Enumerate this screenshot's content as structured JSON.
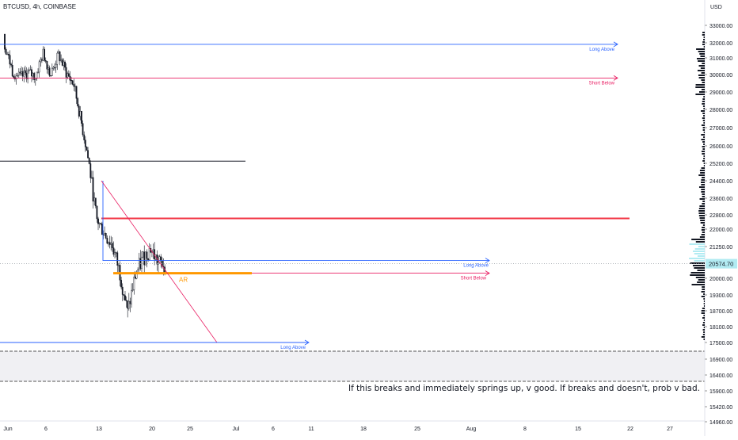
{
  "header": {
    "symbol": "BTCUSD, 4h, COINBASE"
  },
  "price_scale": {
    "currency": "USD",
    "ticks": [
      "33000.00",
      "32000.00",
      "31000.00",
      "30000.00",
      "29000.00",
      "28000.00",
      "27000.00",
      "26000.00",
      "25200.00",
      "24400.00",
      "23600.00",
      "22800.00",
      "22000.00",
      "21250.00",
      "20000.00",
      "19300.00",
      "18700.00",
      "18100.00",
      "17500.00",
      "16900.00",
      "16400.00",
      "15900.00",
      "15420.00",
      "14960.00"
    ],
    "current_price": "20574.70",
    "current_price_color": "#b2ebf2"
  },
  "time_axis": {
    "ticks": [
      "Jun",
      "6",
      "13",
      "20",
      "25",
      "Jul",
      "6",
      "11",
      "18",
      "25",
      "Aug",
      "8",
      "15",
      "22",
      "27"
    ]
  },
  "annotations": {
    "long_above": "Long Above",
    "short_below": "Short Below",
    "ar": "AR",
    "note": "If this breaks and immediately springs up, v good.  If breaks and doesn't, prob v bad."
  },
  "colors": {
    "up": "#ffffff",
    "down": "#131722",
    "long_line": "#2962ff",
    "short_line": "#e91e63",
    "resistance": "#f23645",
    "support_orange": "#ff9800",
    "volume_profile": "#131722"
  },
  "chart_data": {
    "type": "candlestick",
    "title": "BTCUSD, 4h, COINBASE",
    "ylabel": "USD",
    "ylim": [
      14700,
      33800
    ],
    "x_ticks": [
      "Jun",
      "6",
      "13",
      "20",
      "25",
      "Jul",
      "6",
      "11",
      "18",
      "25",
      "Aug",
      "8",
      "15",
      "22",
      "27"
    ],
    "close_series": [
      {
        "day": 0,
        "close": 31800
      },
      {
        "day": 1,
        "close": 30200
      },
      {
        "day": 2,
        "close": 29800
      },
      {
        "day": 3,
        "close": 30100
      },
      {
        "day": 4,
        "close": 29900
      },
      {
        "day": 5,
        "close": 31300
      },
      {
        "day": 6,
        "close": 30000
      },
      {
        "day": 7,
        "close": 31200
      },
      {
        "day": 8,
        "close": 30100
      },
      {
        "day": 9,
        "close": 29400
      },
      {
        "day": 10,
        "close": 27200
      },
      {
        "day": 11,
        "close": 25100
      },
      {
        "day": 12,
        "close": 22500
      },
      {
        "day": 13,
        "close": 21800
      },
      {
        "day": 14,
        "close": 21300
      },
      {
        "day": 15,
        "close": 20200
      },
      {
        "day": 16,
        "close": 18600
      },
      {
        "day": 17,
        "close": 20100
      },
      {
        "day": 18,
        "close": 20800
      },
      {
        "day": 19,
        "close": 21200
      },
      {
        "day": 20,
        "close": 20574.7
      }
    ],
    "horizontal_levels": [
      {
        "label": "Long Above",
        "price": 31900
      },
      {
        "label": "Short Below",
        "price": 29800
      },
      {
        "label": "",
        "price": 25300
      },
      {
        "label": "",
        "price": 22600
      },
      {
        "label": "Long Above",
        "price": 20700
      },
      {
        "label": "Short Below",
        "price": 20200
      },
      {
        "label": "AR",
        "price": 20200
      },
      {
        "label": "Long Above",
        "price": 17500
      }
    ],
    "current_price": 20574.7
  }
}
